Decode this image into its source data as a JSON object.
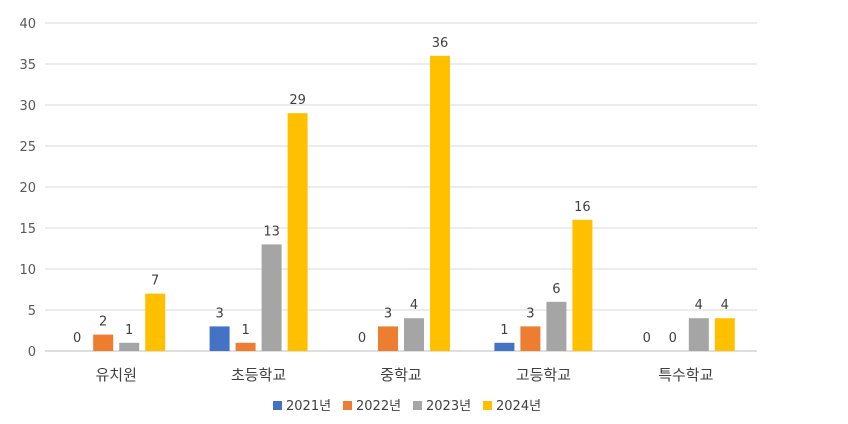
{
  "chart_data": {
    "type": "bar",
    "title": "",
    "xlabel": "",
    "ylabel": "",
    "ylim": [
      0,
      40
    ],
    "yticks": [
      0,
      5,
      10,
      15,
      20,
      25,
      30,
      35,
      40
    ],
    "grid": true,
    "legend_position": "bottom",
    "categories": [
      "유치원",
      "초등학교",
      "중학교",
      "고등학교",
      "특수학교"
    ],
    "series": [
      {
        "name": "2021년",
        "color": "#4472C4",
        "values": [
          0,
          3,
          0,
          1,
          0
        ]
      },
      {
        "name": "2022년",
        "color": "#ED7D31",
        "values": [
          2,
          1,
          3,
          3,
          0
        ]
      },
      {
        "name": "2023년",
        "color": "#A5A5A5",
        "values": [
          1,
          13,
          4,
          6,
          4
        ]
      },
      {
        "name": "2024년",
        "color": "#FFC000",
        "values": [
          7,
          29,
          36,
          16,
          4
        ]
      }
    ]
  }
}
